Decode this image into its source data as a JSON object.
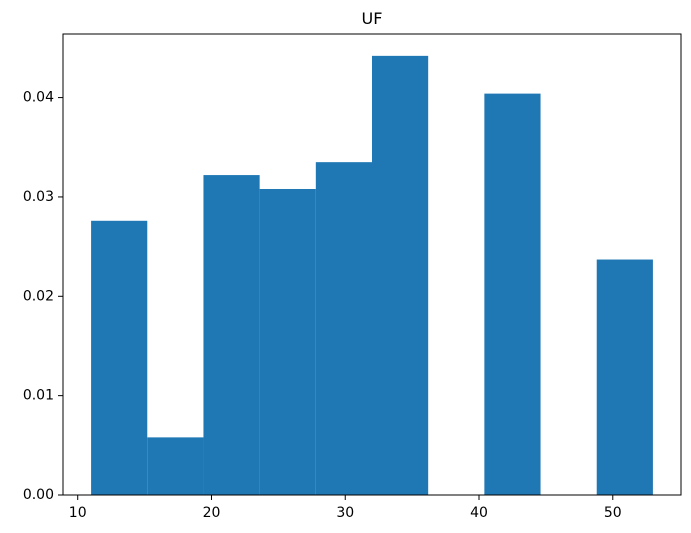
{
  "chart_data": {
    "type": "bar",
    "title": "UF",
    "xlabel": "",
    "ylabel": "",
    "bar_color": "#1f77b4",
    "bins": [
      {
        "x0": 11.0,
        "x1": 15.2,
        "value": 0.0276
      },
      {
        "x0": 15.2,
        "x1": 19.4,
        "value": 0.0058
      },
      {
        "x0": 19.4,
        "x1": 23.6,
        "value": 0.0322
      },
      {
        "x0": 23.6,
        "x1": 27.8,
        "value": 0.0308
      },
      {
        "x0": 27.8,
        "x1": 32.0,
        "value": 0.0335
      },
      {
        "x0": 32.0,
        "x1": 36.2,
        "value": 0.0442
      },
      {
        "x0": 36.2,
        "x1": 40.4,
        "value": 0.0
      },
      {
        "x0": 40.4,
        "x1": 44.6,
        "value": 0.0404
      },
      {
        "x0": 44.6,
        "x1": 48.8,
        "value": 0.0
      },
      {
        "x0": 48.8,
        "x1": 53.0,
        "value": 0.0237
      }
    ],
    "xlim": [
      8.9,
      55.1
    ],
    "ylim": [
      0,
      0.0464
    ],
    "x_ticks": [
      {
        "value": 10,
        "label": "10"
      },
      {
        "value": 20,
        "label": "20"
      },
      {
        "value": 30,
        "label": "30"
      },
      {
        "value": 40,
        "label": "40"
      },
      {
        "value": 50,
        "label": "50"
      }
    ],
    "y_ticks": [
      {
        "value": 0.0,
        "label": "0.00"
      },
      {
        "value": 0.01,
        "label": "0.01"
      },
      {
        "value": 0.02,
        "label": "0.02"
      },
      {
        "value": 0.03,
        "label": "0.03"
      },
      {
        "value": 0.04,
        "label": "0.04"
      }
    ],
    "grid": false,
    "legend": "none"
  }
}
